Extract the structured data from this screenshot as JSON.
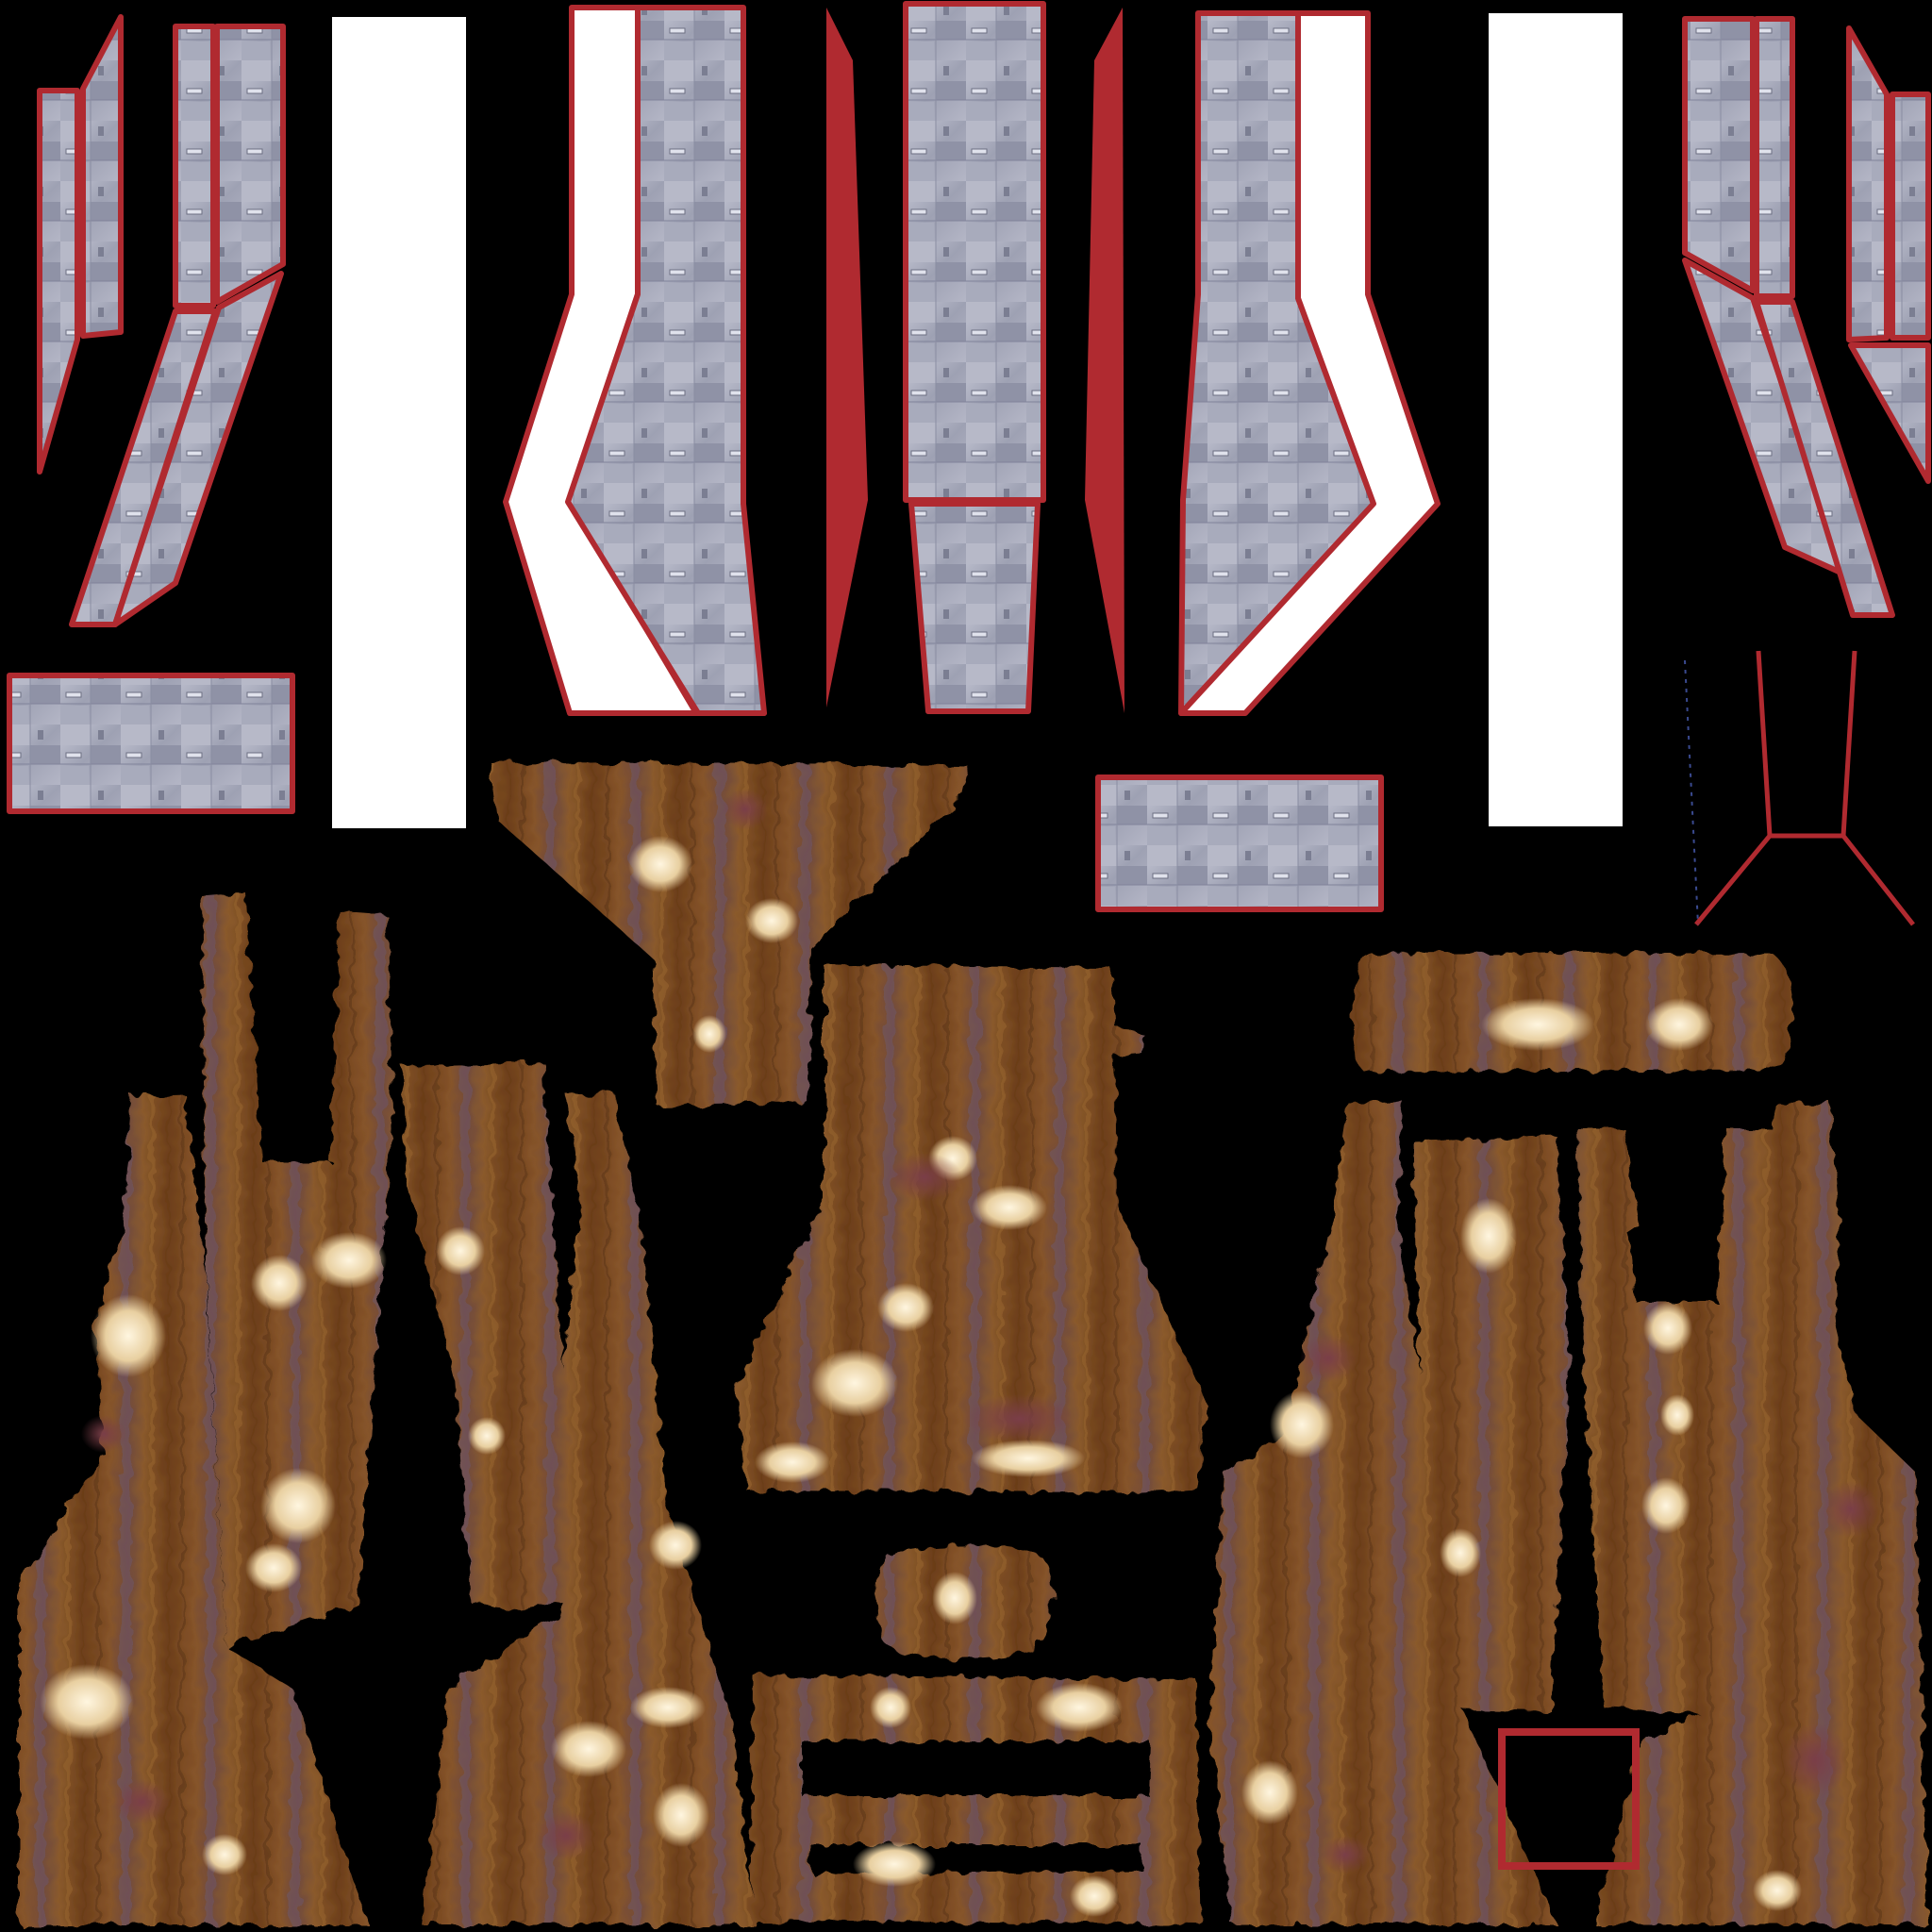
{
  "texture": {
    "background": "#000000",
    "panel_border": "#b02a30",
    "panel_white": "#ffffff",
    "metal_base": "#a5a8b8",
    "metal_dark": "#6c6f82",
    "metal_light": "#d6d8e4",
    "wood_base": "#7a4a22",
    "wood_dark": "#5a3314",
    "wood_light": "#9a6532",
    "wear_cream": "#f0dcb0",
    "wear_plum": "#6e3a40"
  }
}
